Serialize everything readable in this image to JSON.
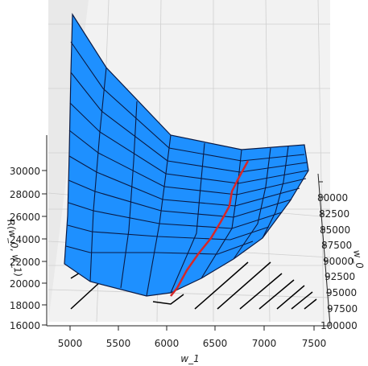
{
  "chart_data": {
    "type": "surface3d",
    "zlabel": "R(w_0, w_1)",
    "xlabel": "w_1",
    "ylabel": "w_0",
    "x_ticks": [
      "5000",
      "5500",
      "6000",
      "6500",
      "7000",
      "7500"
    ],
    "y_ticks": [
      "80000",
      "82500",
      "85000",
      "87500",
      "90000",
      "92500",
      "95000",
      "97500",
      "100000"
    ],
    "z_ticks": [
      "16000",
      "18000",
      "20000",
      "22000",
      "24000",
      "26000",
      "28000",
      "30000"
    ],
    "xlim": [
      4800,
      7600
    ],
    "ylim": [
      78000,
      100000
    ],
    "zlim": [
      16000,
      32000
    ],
    "surface_color": "#1e90ff",
    "path_color": "#d62728",
    "contour_color": "#000000"
  }
}
